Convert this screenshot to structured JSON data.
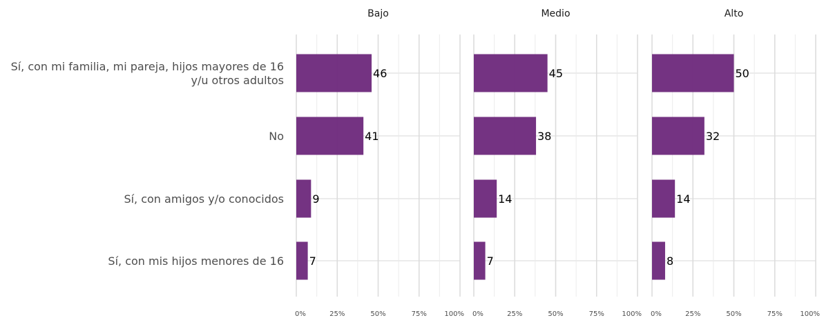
{
  "chart_data": {
    "type": "bar",
    "orientation": "horizontal",
    "facets": [
      "Bajo",
      "Medio",
      "Alto"
    ],
    "categories": [
      [
        "Sí, con mi familia, mi pareja, hijos mayores de 16",
        "y/u otros adultos"
      ],
      [
        "No"
      ],
      [
        "Sí, con amigos y/o conocidos"
      ],
      [
        "Sí, con mis hijos menores de 16"
      ]
    ],
    "values": [
      [
        46,
        41,
        9,
        7
      ],
      [
        45,
        38,
        14,
        7
      ],
      [
        50,
        32,
        14,
        8
      ]
    ],
    "xlim": [
      0,
      100
    ],
    "xticks": [
      "0%",
      "25%",
      "50%",
      "75%",
      "100%"
    ],
    "bar_color": "#6f2c7e",
    "grid": true,
    "title": "",
    "xlabel": "",
    "ylabel": ""
  }
}
